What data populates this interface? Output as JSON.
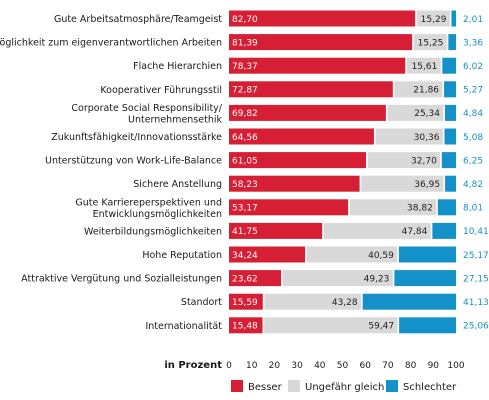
{
  "chart_data": {
    "type": "bar",
    "orientation": "horizontal",
    "stacked": true,
    "xlabel": "in Prozent",
    "xlim": [
      0,
      100
    ],
    "xticks": [
      "0",
      "10",
      "20",
      "30",
      "40",
      "50",
      "60",
      "70",
      "80",
      "90",
      "100"
    ],
    "legend_position": "bottom",
    "categories": [
      [
        "Gute Arbeitsatmosphäre/Teamgeist"
      ],
      [
        "Möglichkeit zum eigenverantwortlichen Arbeiten"
      ],
      [
        "Flache Hierarchien"
      ],
      [
        "Kooperativer Führungsstil"
      ],
      [
        "Corporate Social Responsibility/",
        "Unternehmensethik"
      ],
      [
        "Zukunftsfähigkeit/Innovationsstärke"
      ],
      [
        "Unterstützung von Work-Life-Balance"
      ],
      [
        "Sichere Anstellung"
      ],
      [
        "Gute Karriereperspektiven und",
        "Entwicklungsmöglichkeiten"
      ],
      [
        "Weiterbildungsmöglichkeiten"
      ],
      [
        "Hohe Reputation"
      ],
      [
        "Attraktive Vergütung und Sozialleistungen"
      ],
      [
        "Standort"
      ],
      [
        "Internationalität"
      ]
    ],
    "series": [
      {
        "name": "Besser",
        "color": "#d61f34",
        "label_color": "#ffffff",
        "values": [
          82.7,
          81.39,
          78.37,
          72.87,
          69.82,
          64.56,
          61.05,
          58.23,
          53.17,
          41.75,
          34.24,
          23.62,
          15.59,
          15.48
        ],
        "labels": [
          "82,70",
          "81,39",
          "78,37",
          "72,87",
          "69,82",
          "64,56",
          "61,05",
          "58,23",
          "53,17",
          "41,75",
          "34,24",
          "23,62",
          "15,59",
          "15,48"
        ]
      },
      {
        "name": "Ungefähr gleich",
        "color": "#d9d9d9",
        "label_color": "#222222",
        "values": [
          15.29,
          15.25,
          15.61,
          21.86,
          25.34,
          30.36,
          32.7,
          36.95,
          38.82,
          47.84,
          40.59,
          49.23,
          43.28,
          59.47
        ],
        "labels": [
          "15,29",
          "15,25",
          "15,61",
          "21,86",
          "25,34",
          "30,36",
          "32,70",
          "36,95",
          "38,82",
          "47,84",
          "40,59",
          "49,23",
          "43,28",
          "59,47"
        ]
      },
      {
        "name": "Schlechter",
        "color": "#1591c9",
        "label_color": "#1591c9",
        "values": [
          2.01,
          3.36,
          6.02,
          5.27,
          4.84,
          5.08,
          6.25,
          4.82,
          8.01,
          10.41,
          25.17,
          27.15,
          41.13,
          25.06
        ],
        "labels": [
          "2,01",
          "3,36",
          "6,02",
          "5,27",
          "4,84",
          "5,08",
          "6,25",
          "4,82",
          "8,01",
          "10,41",
          "25,17",
          "27,15",
          "41,13",
          "25,06"
        ]
      }
    ]
  }
}
